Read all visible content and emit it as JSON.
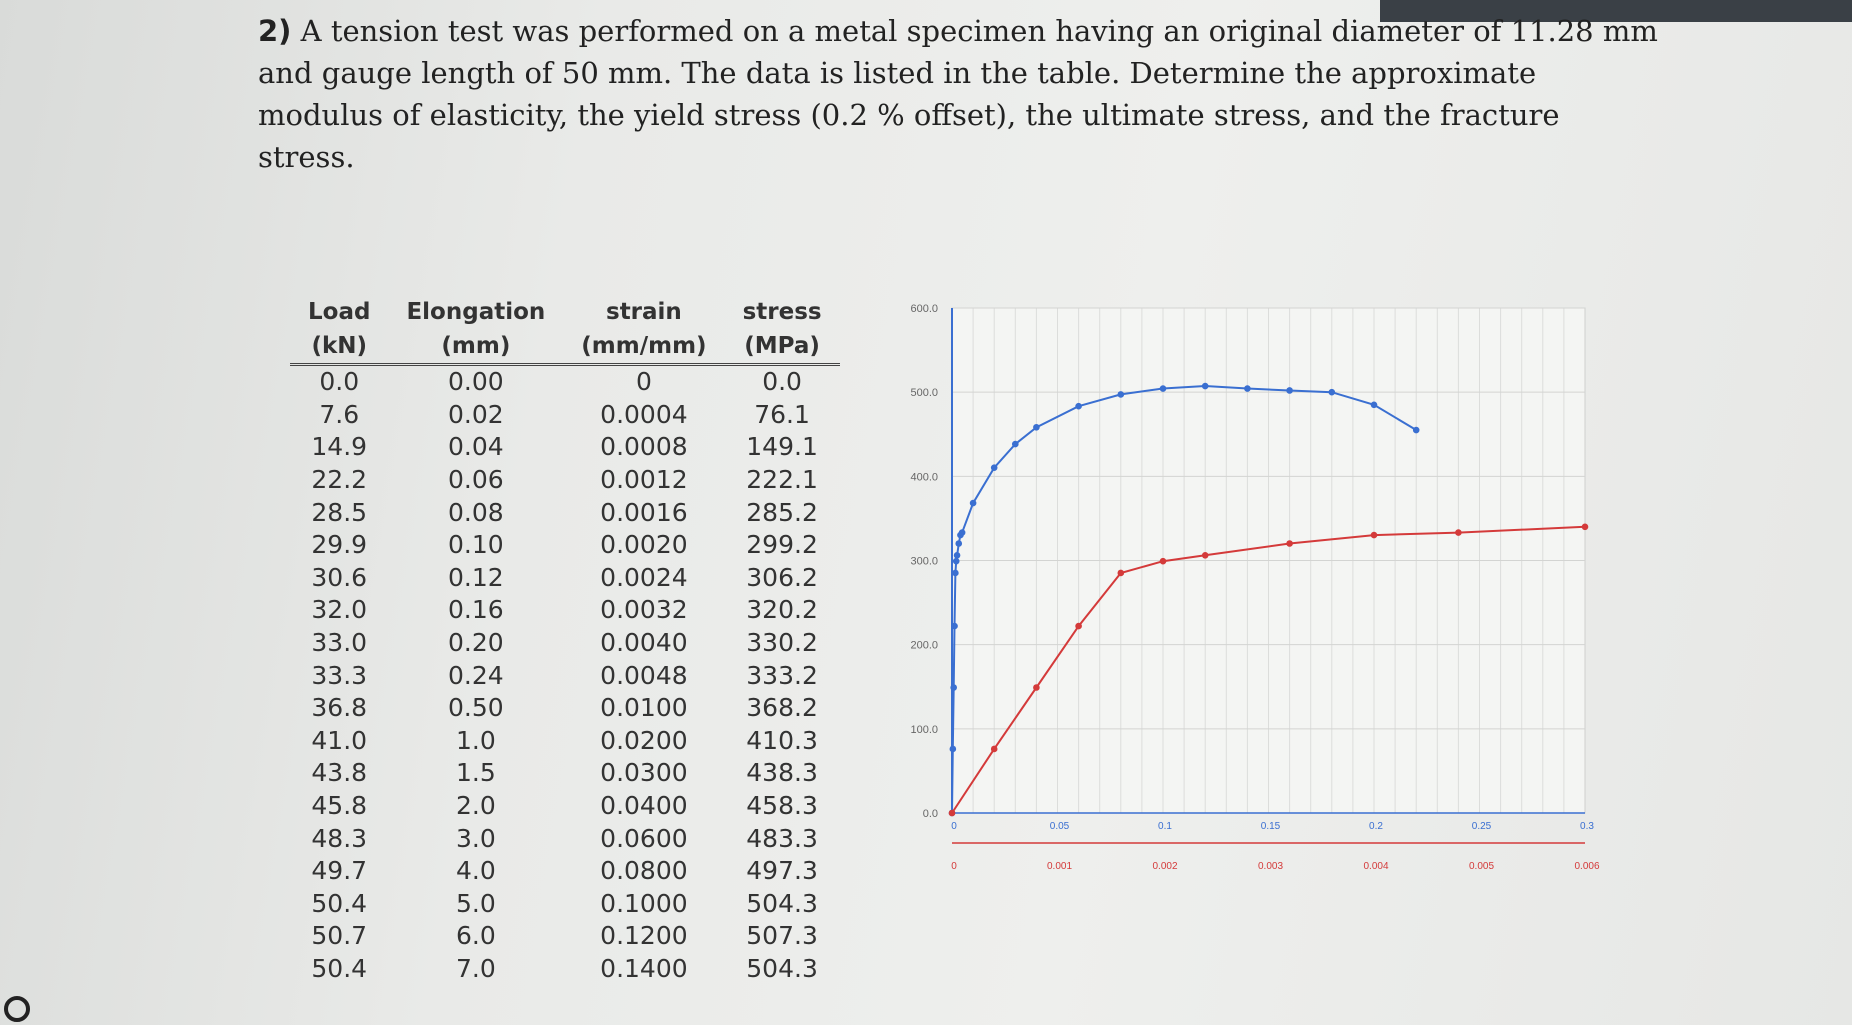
{
  "problem": {
    "number": "2)",
    "text": "A tension test was performed on a metal specimen having an original diameter of 11.28 mm and gauge length of 50 mm. The data is listed in the table. Determine the approximate modulus of elasticity, the yield stress (0.2 % offset), the ultimate stress, and the fracture stress."
  },
  "table": {
    "headers": [
      {
        "line1": "Load",
        "line2": "(kN)"
      },
      {
        "line1": "Elongation",
        "line2": "(mm)"
      },
      {
        "line1": "strain",
        "line2": "(mm/mm)"
      },
      {
        "line1": "stress",
        "line2": "(MPa)"
      }
    ],
    "rows": [
      [
        "0.0",
        "0.00",
        "0",
        "0.0"
      ],
      [
        "7.6",
        "0.02",
        "0.0004",
        "76.1"
      ],
      [
        "14.9",
        "0.04",
        "0.0008",
        "149.1"
      ],
      [
        "22.2",
        "0.06",
        "0.0012",
        "222.1"
      ],
      [
        "28.5",
        "0.08",
        "0.0016",
        "285.2"
      ],
      [
        "29.9",
        "0.10",
        "0.0020",
        "299.2"
      ],
      [
        "30.6",
        "0.12",
        "0.0024",
        "306.2"
      ],
      [
        "32.0",
        "0.16",
        "0.0032",
        "320.2"
      ],
      [
        "33.0",
        "0.20",
        "0.0040",
        "330.2"
      ],
      [
        "33.3",
        "0.24",
        "0.0048",
        "333.2"
      ],
      [
        "36.8",
        "0.50",
        "0.0100",
        "368.2"
      ],
      [
        "41.0",
        "1.0",
        "0.0200",
        "410.3"
      ],
      [
        "43.8",
        "1.5",
        "0.0300",
        "438.3"
      ],
      [
        "45.8",
        "2.0",
        "0.0400",
        "458.3"
      ],
      [
        "48.3",
        "3.0",
        "0.0600",
        "483.3"
      ],
      [
        "49.7",
        "4.0",
        "0.0800",
        "497.3"
      ],
      [
        "50.4",
        "5.0",
        "0.1000",
        "504.3"
      ],
      [
        "50.7",
        "6.0",
        "0.1200",
        "507.3"
      ],
      [
        "50.4",
        "7.0",
        "0.1400",
        "504.3"
      ]
    ]
  },
  "chart_data": {
    "type": "line",
    "ylim": [
      0,
      600
    ],
    "yticks": [
      "0.0",
      "100.0",
      "200.0",
      "300.0",
      "400.0",
      "500.0",
      "600.0"
    ],
    "x_top": {
      "lim": [
        0,
        0.3
      ],
      "ticks": [
        "0",
        "0.05",
        "0.1",
        "0.15",
        "0.2",
        "0.25",
        "0.3"
      ],
      "color": "#3a6fd1"
    },
    "x_bottom": {
      "lim": [
        0,
        0.006
      ],
      "ticks": [
        "0",
        "0.001",
        "0.002",
        "0.003",
        "0.004",
        "0.005",
        "0.006"
      ],
      "color": "#d43a3a"
    },
    "series": [
      {
        "axis": "x_top",
        "color": "#3a6fd1",
        "x": [
          0,
          0.0004,
          0.0008,
          0.0012,
          0.0016,
          0.002,
          0.0024,
          0.0032,
          0.004,
          0.0048,
          0.01,
          0.02,
          0.03,
          0.04,
          0.06,
          0.08,
          0.1,
          0.12,
          0.14,
          0.16,
          0.18,
          0.2,
          0.22
        ],
        "y": [
          0,
          76.1,
          149.1,
          222.1,
          285.2,
          299.2,
          306.2,
          320.2,
          330.2,
          333.2,
          368.2,
          410.3,
          438.3,
          458.3,
          483.3,
          497.3,
          504.3,
          507.3,
          504.3,
          502,
          500,
          485,
          455
        ]
      },
      {
        "axis": "x_bottom",
        "color": "#d43a3a",
        "x": [
          0,
          0.0004,
          0.0008,
          0.0012,
          0.0016,
          0.002,
          0.0024,
          0.0032,
          0.004,
          0.0048,
          0.006
        ],
        "y": [
          0,
          76.1,
          149.1,
          222.1,
          285.2,
          299.2,
          306.2,
          320.2,
          330.2,
          333.2,
          340
        ]
      }
    ]
  }
}
